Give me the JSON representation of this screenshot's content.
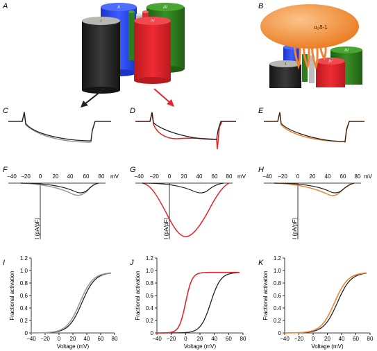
{
  "panel_labels": [
    "A",
    "B",
    "C",
    "D",
    "E",
    "F",
    "G",
    "H",
    "I",
    "J",
    "K"
  ],
  "colors": {
    "control": "#231f20",
    "grey": "#9a9a9a",
    "red": "#e2262e",
    "orange": "#ee8433",
    "blue": "#2546e8",
    "green": "#2e7d1f",
    "alpha2delta": "#f28a2e"
  },
  "channel": {
    "domains": [
      "I",
      "II",
      "III",
      "IV"
    ],
    "subunit_label": "α₂δ-1"
  },
  "iv": {
    "unit": "mV",
    "ylabel": "I (pA/pF)",
    "ticks": [
      "−40",
      "−20",
      "0",
      "20",
      "40",
      "60",
      "80"
    ]
  },
  "activation": {
    "xlabel": "Voltage (mV)",
    "ylabel": "Fractional activation",
    "xticks": [
      "−40",
      "−20",
      "0",
      "20",
      "40",
      "60",
      "80"
    ],
    "yticks": [
      "0",
      "0.2",
      "0.4",
      "0.6",
      "0.8",
      "1.0",
      "1.2"
    ]
  },
  "chart_data": [
    {
      "panel": "I",
      "type": "line",
      "xlabel": "Voltage (mV)",
      "ylabel": "Fractional activation",
      "xlim": [
        -40,
        80
      ],
      "ylim": [
        0,
        1.2
      ],
      "series": [
        {
          "color": "control",
          "v_half": 33,
          "slope": 9.5
        },
        {
          "color": "grey",
          "v_half": 30,
          "slope": 9.5
        }
      ]
    },
    {
      "panel": "J",
      "type": "line",
      "xlabel": "Voltage (mV)",
      "ylabel": "Fractional activation",
      "xlim": [
        -40,
        80
      ],
      "ylim": [
        0,
        1.2
      ],
      "series": [
        {
          "color": "control",
          "v_half": 35,
          "slope": 7
        },
        {
          "color": "red",
          "v_half": 0,
          "slope": 4.5
        }
      ]
    },
    {
      "panel": "K",
      "type": "line",
      "xlabel": "Voltage (mV)",
      "ylabel": "Fractional activation",
      "xlim": [
        -40,
        80
      ],
      "ylim": [
        0,
        1.2
      ],
      "series": [
        {
          "color": "control",
          "v_half": 34,
          "slope": 9.5
        },
        {
          "color": "orange",
          "v_half": 30,
          "slope": 9.5
        }
      ]
    }
  ]
}
